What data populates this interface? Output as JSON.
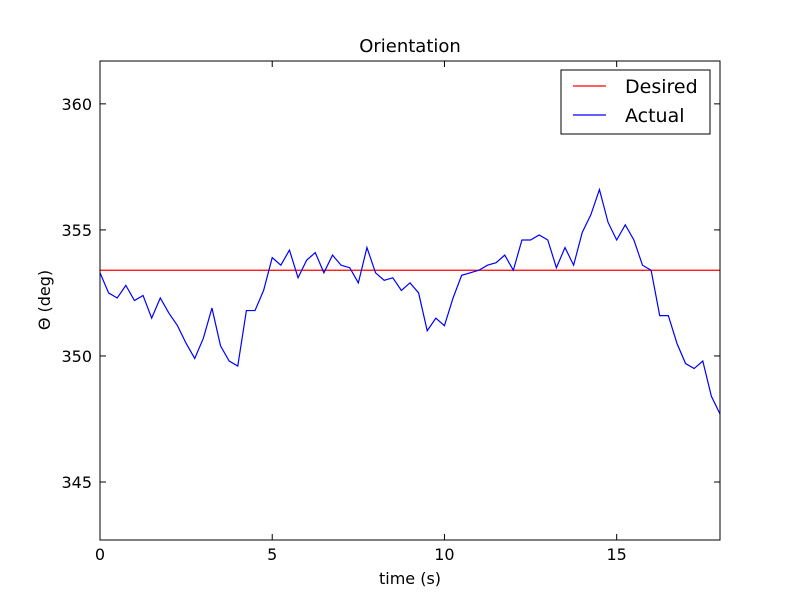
{
  "chart_data": {
    "type": "line",
    "title": "Orientation",
    "x_label": "time (s)",
    "y_label": "Θ (deg)",
    "xlim": [
      0,
      18
    ],
    "ylim": [
      342.7,
      361.7
    ],
    "xticks": [
      0,
      5,
      10,
      15
    ],
    "yticks": [
      345,
      350,
      355,
      360
    ],
    "legend": "upper right",
    "grid": false,
    "series": [
      {
        "name": "Desired",
        "color": "#ff0000",
        "x": [
          0,
          18
        ],
        "values": [
          353.4,
          353.4
        ]
      },
      {
        "name": "Actual",
        "color": "#0000ff",
        "x": [
          0,
          0.25,
          0.5,
          0.75,
          1,
          1.25,
          1.5,
          1.75,
          2,
          2.25,
          2.5,
          2.75,
          3,
          3.25,
          3.5,
          3.75,
          4,
          4.25,
          4.5,
          4.75,
          5,
          5.25,
          5.5,
          5.75,
          6,
          6.25,
          6.5,
          6.75,
          7,
          7.25,
          7.5,
          7.75,
          8,
          8.25,
          8.5,
          8.75,
          9,
          9.25,
          9.5,
          9.75,
          10,
          10.25,
          10.5,
          10.75,
          11,
          11.25,
          11.5,
          11.75,
          12,
          12.25,
          12.5,
          12.75,
          13,
          13.25,
          13.5,
          13.75,
          14,
          14.25,
          14.5,
          14.75,
          15,
          15.25,
          15.5,
          15.75,
          16,
          16.25,
          16.5,
          16.75,
          17,
          17.25,
          17.5,
          17.75,
          18
        ],
        "values": [
          353.3,
          352.5,
          352.3,
          352.8,
          352.2,
          352.4,
          351.5,
          352.3,
          351.7,
          351.2,
          350.5,
          349.9,
          350.7,
          351.9,
          350.4,
          349.8,
          349.6,
          351.8,
          351.8,
          352.6,
          353.9,
          353.6,
          354.2,
          353.1,
          353.8,
          354.1,
          353.3,
          354.0,
          353.6,
          353.5,
          352.9,
          354.3,
          353.3,
          353.0,
          353.1,
          352.6,
          352.9,
          352.5,
          351.0,
          351.5,
          351.2,
          352.3,
          353.2,
          353.3,
          353.4,
          353.6,
          353.7,
          354.0,
          353.4,
          354.6,
          354.6,
          354.8,
          354.6,
          353.5,
          354.3,
          353.6,
          354.9,
          355.6,
          356.6,
          355.3,
          354.6,
          355.2,
          354.6,
          353.6,
          353.4,
          351.6,
          351.6,
          350.5,
          349.7,
          349.5,
          349.8,
          348.4,
          347.7
        ]
      }
    ]
  }
}
